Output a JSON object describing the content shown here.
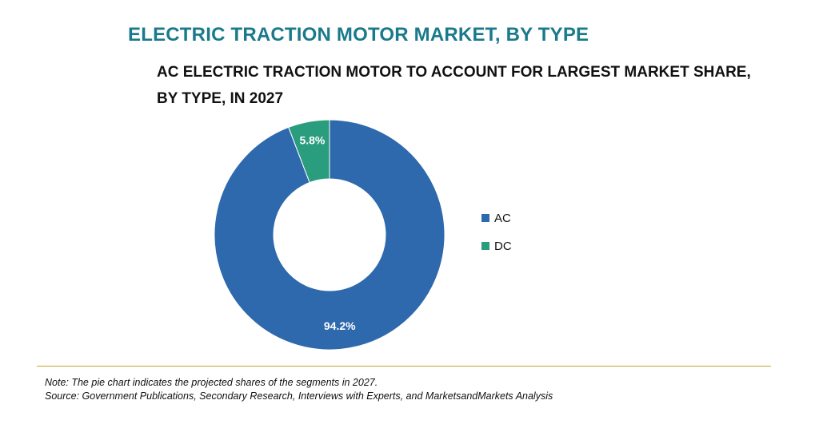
{
  "header": {
    "title": "ELECTRIC TRACTION MOTOR MARKET, BY TYPE",
    "subtitle_line1": "AC ELECTRIC TRACTION MOTOR TO ACCOUNT FOR LARGEST MARKET SHARE,",
    "subtitle_line2": "BY TYPE, IN 2027"
  },
  "colors": {
    "title": "#1a7a8c",
    "ac": "#2e69ad",
    "dc": "#2a9d7e",
    "divider": "#c9a227"
  },
  "chart_data": {
    "type": "pie",
    "variant": "donut",
    "title": "AC ELECTRIC TRACTION MOTOR TO ACCOUNT FOR LARGEST MARKET SHARE, BY TYPE, IN 2027",
    "unit": "%",
    "categories": [
      "AC",
      "DC"
    ],
    "values": [
      94.2,
      5.8
    ],
    "labels": [
      "94.2%",
      "5.8%"
    ],
    "colors": [
      "#2e69ad",
      "#2a9d7e"
    ],
    "legend_position": "right"
  },
  "legend": {
    "items": [
      {
        "label": "AC",
        "color": "#2e69ad"
      },
      {
        "label": "DC",
        "color": "#2a9d7e"
      }
    ]
  },
  "footer": {
    "note": "Note: The pie chart indicates the projected shares of the segments in 2027.",
    "source": "Source: Government Publications, Secondary Research, Interviews with Experts, and MarketsandMarkets Analysis"
  }
}
